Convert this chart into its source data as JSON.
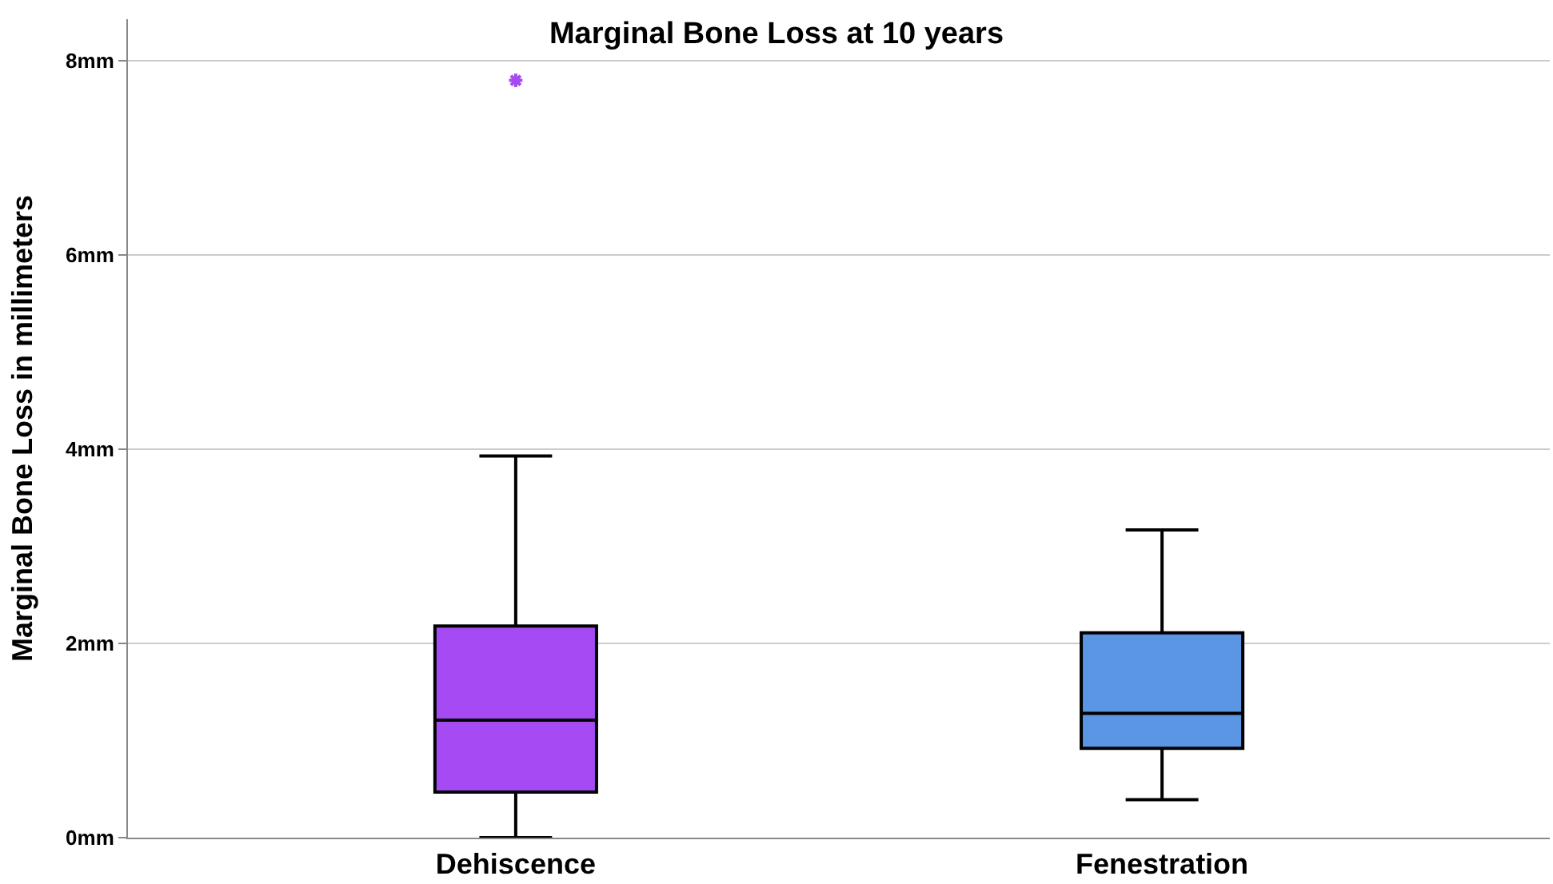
{
  "chart_data": {
    "type": "box",
    "title": "Marginal Bone Loss at 10 years",
    "ylabel": "Marginal Bone Loss in millimeters",
    "categories": [
      "Dehiscence",
      "Fenestration"
    ],
    "colors": [
      "#a64bf4",
      "#5a96e3"
    ],
    "boxes": [
      {
        "low": 0,
        "q1": 0.47,
        "median": 1.21,
        "q3": 2.18,
        "high": 3.93,
        "outliers": [
          7.8
        ]
      },
      {
        "low": 0.39,
        "q1": 0.92,
        "median": 1.28,
        "q3": 2.11,
        "high": 3.17
      }
    ],
    "ylim": [
      0,
      8.43
    ],
    "yticks": [
      {
        "value": 0,
        "label": "0mm"
      },
      {
        "value": 2,
        "label": "2mm"
      },
      {
        "value": 4,
        "label": "4mm"
      },
      {
        "value": 6,
        "label": "6mm"
      },
      {
        "value": 8,
        "label": "8mm"
      }
    ],
    "grid": "y"
  }
}
